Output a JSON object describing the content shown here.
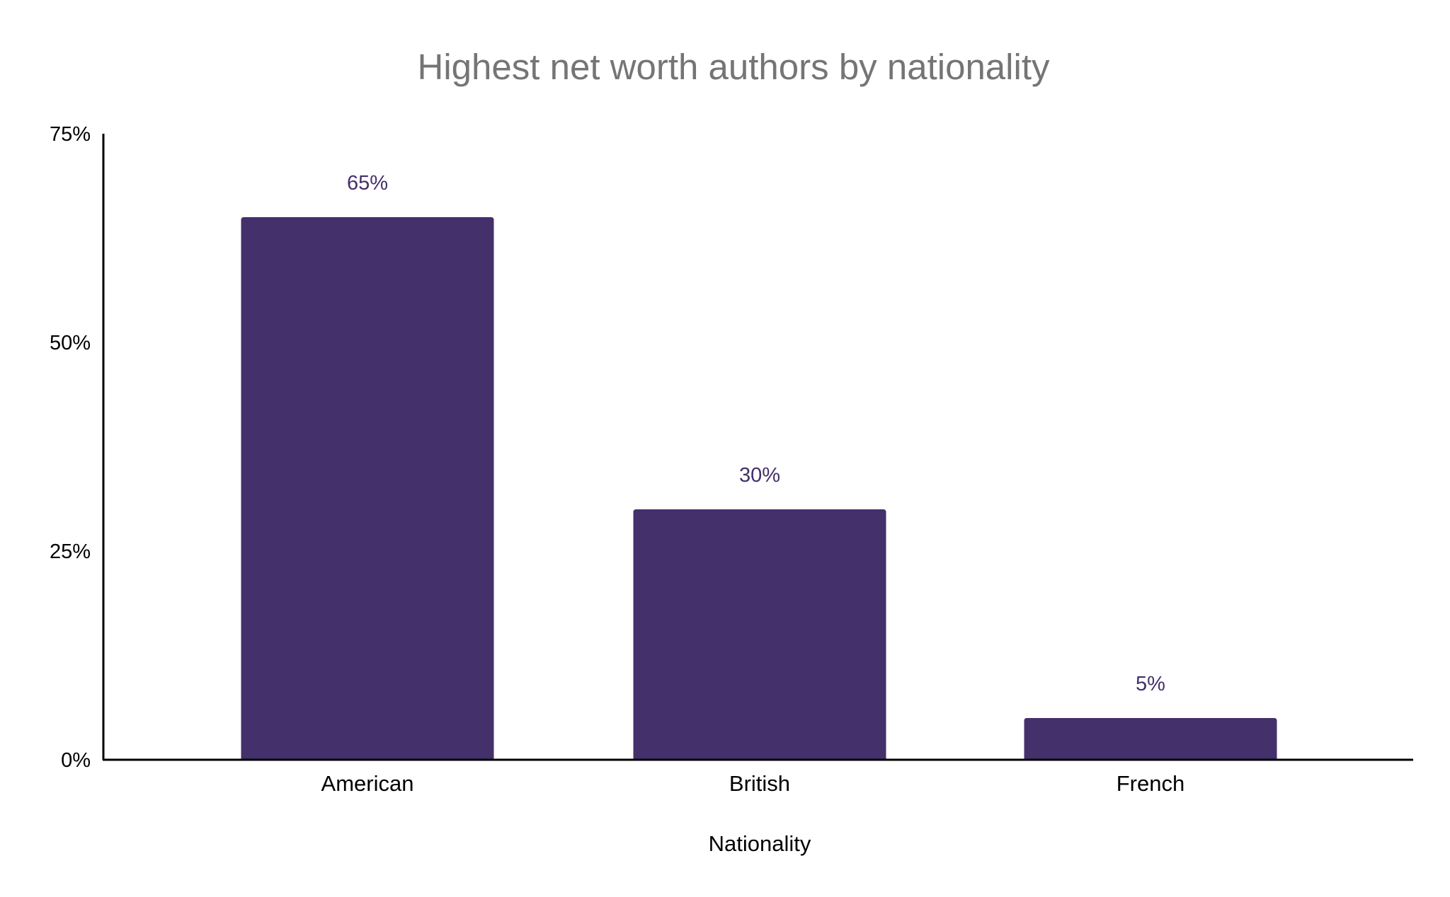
{
  "chart_data": {
    "type": "bar",
    "title": "Highest net worth authors by nationality",
    "xlabel": "Nationality",
    "ylabel": "",
    "categories": [
      "American",
      "British",
      "French"
    ],
    "values": [
      65,
      30,
      5
    ],
    "value_labels": [
      "65%",
      "30%",
      "5%"
    ],
    "ylim": [
      0,
      75
    ],
    "yticks": [
      0,
      25,
      50,
      75
    ],
    "ytick_labels": [
      "0%",
      "25%",
      "50%",
      "75%"
    ],
    "grid": false,
    "legend": "none",
    "colors": {
      "bar": "#44306b",
      "data_label": "#44306b",
      "title": "#757575",
      "axis": "#000000"
    }
  }
}
